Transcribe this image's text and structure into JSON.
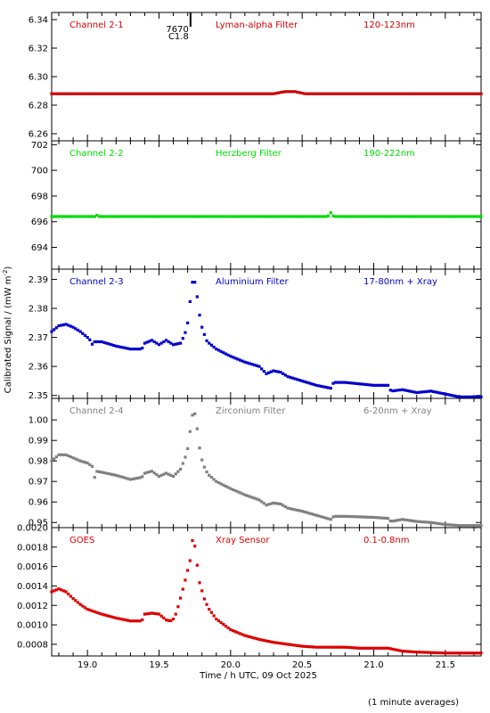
{
  "page": {
    "x_axis_label": "Time / h UTC, 09 Oct 2025",
    "y_axis_label": "Calibrated Signal / (mW m",
    "y_axis_label_sup": "-2",
    "y_axis_label_end": ")",
    "footnote": "(1 minute averages)"
  },
  "chart_data": [
    {
      "type": "scatter",
      "channel": "Channel 2-1",
      "filter": "Lyman-alpha Filter",
      "band": "120-123nm",
      "color": "#cc0000",
      "xlim": [
        18.75,
        21.75
      ],
      "ylim": [
        6.255,
        6.345
      ],
      "yticks": [
        6.26,
        6.28,
        6.3,
        6.32,
        6.34
      ],
      "ytick_labels": [
        "6.26",
        "6.28",
        "6.30",
        "6.32",
        "6.34"
      ],
      "flare_marker": {
        "x": 19.72,
        "labels": [
          "7670",
          "C1.8"
        ]
      },
      "series": [
        {
          "x": [
            18.75,
            20.3,
            20.38,
            20.45,
            20.52,
            21.75
          ],
          "y": [
            6.288,
            6.288,
            6.2895,
            6.2895,
            6.288,
            6.288
          ]
        }
      ]
    },
    {
      "type": "scatter",
      "channel": "Channel 2-2",
      "filter": "Herzberg Filter",
      "band": "190-222nm",
      "color": "#00dd00",
      "xlim": [
        18.75,
        21.75
      ],
      "ylim": [
        692.3,
        702.3
      ],
      "yticks": [
        694,
        696,
        698,
        700,
        702
      ],
      "ytick_labels": [
        "694",
        "696",
        "698",
        "700",
        "702"
      ],
      "series": [
        {
          "x": [
            18.75,
            19.05,
            19.06,
            19.07,
            20.68,
            20.7,
            20.72,
            21.75
          ],
          "y": [
            696.4,
            696.4,
            696.7,
            696.4,
            696.4,
            696.7,
            696.4,
            696.4
          ]
        }
      ]
    },
    {
      "type": "scatter",
      "channel": "Channel 2-3",
      "filter": "Aluminium Filter",
      "band": "17-80nm + Xray",
      "color": "#0000cc",
      "xlim": [
        18.75,
        21.75
      ],
      "ylim": [
        2.349,
        2.3935
      ],
      "yticks": [
        2.35,
        2.36,
        2.37,
        2.38,
        2.39
      ],
      "ytick_labels": [
        "2.35",
        "2.36",
        "2.37",
        "2.38",
        "2.39"
      ],
      "series": [
        {
          "x": [
            18.75,
            18.8,
            18.85,
            18.9,
            18.95,
            19.0,
            19.02,
            19.04,
            19.05,
            19.1,
            19.2,
            19.3,
            19.38,
            19.4,
            19.45,
            19.5,
            19.55,
            19.6,
            19.65,
            19.68,
            19.7,
            19.71,
            19.72,
            19.73,
            19.74,
            19.75,
            19.76,
            19.77,
            19.78,
            19.79,
            19.81,
            19.83,
            19.85,
            19.9,
            20.0,
            20.1,
            20.2,
            20.25,
            20.3,
            20.35,
            20.4,
            20.5,
            20.6,
            20.7,
            20.72,
            20.8,
            21.0,
            21.1,
            21.12,
            21.2,
            21.3,
            21.4,
            21.5,
            21.6,
            21.75
          ],
          "y": [
            2.372,
            2.374,
            2.3745,
            2.3735,
            2.372,
            2.37,
            2.369,
            2.367,
            2.3685,
            2.3685,
            2.367,
            2.366,
            2.366,
            2.368,
            2.369,
            2.3675,
            2.369,
            2.3675,
            2.368,
            2.371,
            2.375,
            2.379,
            2.384,
            2.3885,
            2.39,
            2.389,
            2.386,
            2.383,
            2.379,
            2.375,
            2.372,
            2.369,
            2.368,
            2.366,
            2.3635,
            2.3615,
            2.36,
            2.3575,
            2.3585,
            2.358,
            2.3565,
            2.355,
            2.3535,
            2.3525,
            2.3545,
            2.3545,
            2.3535,
            2.3535,
            2.3515,
            2.352,
            2.351,
            2.3515,
            2.3505,
            2.3495,
            2.3495
          ]
        }
      ]
    },
    {
      "type": "scatter",
      "channel": "Channel 2-4",
      "filter": "Zirconium Filter",
      "band": "6-20nm + Xray",
      "color": "#808080",
      "xlim": [
        18.75,
        21.75
      ],
      "ylim": [
        0.9475,
        1.0105
      ],
      "yticks": [
        0.95,
        0.96,
        0.97,
        0.98,
        0.99,
        1.0
      ],
      "ytick_labels": [
        "0.95",
        "0.96",
        "0.97",
        "0.98",
        "0.99",
        "1.00"
      ],
      "series": [
        {
          "x": [
            18.75,
            18.8,
            18.85,
            18.9,
            18.95,
            19.0,
            19.04,
            19.05,
            19.06,
            19.1,
            19.2,
            19.3,
            19.38,
            19.4,
            19.45,
            19.5,
            19.55,
            19.6,
            19.65,
            19.68,
            19.7,
            19.71,
            19.72,
            19.73,
            19.74,
            19.75,
            19.76,
            19.77,
            19.78,
            19.79,
            19.81,
            19.83,
            19.85,
            19.9,
            20.0,
            20.1,
            20.2,
            20.25,
            20.3,
            20.35,
            20.4,
            20.5,
            20.6,
            20.7,
            20.72,
            20.8,
            21.0,
            21.1,
            21.12,
            21.2,
            21.3,
            21.4,
            21.5,
            21.6,
            21.75
          ],
          "y": [
            0.98,
            0.983,
            0.983,
            0.9815,
            0.98,
            0.979,
            0.977,
            0.972,
            0.975,
            0.9745,
            0.973,
            0.971,
            0.972,
            0.974,
            0.975,
            0.9725,
            0.974,
            0.9725,
            0.976,
            0.981,
            0.986,
            0.991,
            0.996,
            1.001,
            1.005,
            1.003,
            0.999,
            0.994,
            0.988,
            0.983,
            0.978,
            0.975,
            0.973,
            0.97,
            0.9665,
            0.9635,
            0.961,
            0.9585,
            0.9595,
            0.959,
            0.957,
            0.9555,
            0.9535,
            0.9515,
            0.953,
            0.953,
            0.9525,
            0.952,
            0.9505,
            0.9515,
            0.9505,
            0.95,
            0.949,
            0.9485,
            0.9485
          ]
        }
      ]
    },
    {
      "type": "scatter",
      "channel": "GOES",
      "filter": "Xray Sensor",
      "band": "0.1-0.8nm",
      "color": "#dd0000",
      "xlim": [
        18.75,
        21.75
      ],
      "ylim": [
        0.00068,
        0.002
      ],
      "yticks": [
        0.0008,
        0.001,
        0.0012,
        0.0014,
        0.0016,
        0.0018,
        0.002
      ],
      "ytick_labels": [
        "0.0008",
        "0.0010",
        "0.0012",
        "0.0014",
        "0.0016",
        "0.0018",
        "0.0020"
      ],
      "xticks": [
        19.0,
        19.5,
        20.0,
        20.5,
        21.0,
        21.5
      ],
      "xtick_labels": [
        "19.0",
        "19.5",
        "20.0",
        "20.5",
        "21.0",
        "21.5"
      ],
      "series": [
        {
          "x": [
            18.75,
            18.8,
            18.85,
            18.9,
            18.95,
            19.0,
            19.1,
            19.2,
            19.3,
            19.38,
            19.4,
            19.45,
            19.5,
            19.55,
            19.58,
            19.6,
            19.62,
            19.64,
            19.66,
            19.68,
            19.7,
            19.72,
            19.73,
            19.74,
            19.75,
            19.76,
            19.77,
            19.78,
            19.8,
            19.82,
            19.85,
            19.9,
            20.0,
            20.1,
            20.2,
            20.3,
            20.4,
            20.5,
            20.6,
            20.7,
            20.8,
            20.9,
            21.0,
            21.1,
            21.2,
            21.3,
            21.5,
            21.75
          ],
          "y": [
            0.00134,
            0.00137,
            0.00134,
            0.00127,
            0.00121,
            0.00116,
            0.00111,
            0.00107,
            0.00104,
            0.00104,
            0.00111,
            0.00112,
            0.00111,
            0.00105,
            0.00104,
            0.00106,
            0.00112,
            0.00122,
            0.00133,
            0.00144,
            0.00156,
            0.00168,
            0.00185,
            0.0019,
            0.00181,
            0.0017,
            0.00157,
            0.00145,
            0.00135,
            0.00125,
            0.00116,
            0.00106,
            0.00095,
            0.00089,
            0.00085,
            0.00082,
            0.0008,
            0.00078,
            0.00077,
            0.00077,
            0.00077,
            0.00076,
            0.00076,
            0.00076,
            0.00073,
            0.00072,
            0.00071,
            0.00071
          ]
        }
      ]
    }
  ]
}
